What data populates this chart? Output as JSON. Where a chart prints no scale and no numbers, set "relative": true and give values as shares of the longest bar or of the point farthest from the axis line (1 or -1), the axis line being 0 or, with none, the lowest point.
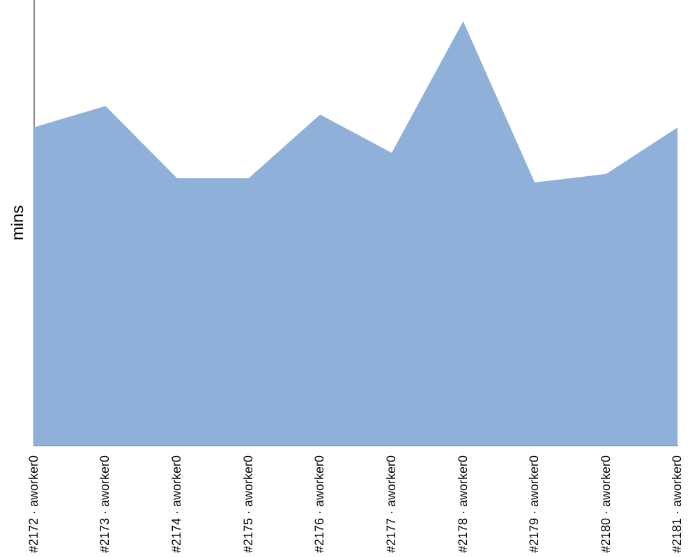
{
  "chart_data": {
    "type": "area",
    "ylabel": "mins",
    "relative": true,
    "categories": [
      "#2172 · aworker0",
      "#2173 · aworker0",
      "#2174 · aworker0",
      "#2175 · aworker0",
      "#2176 · aworker0",
      "#2177 · aworker0",
      "#2178 · aworker0",
      "#2179 · aworker0",
      "#2180 · aworker0",
      "#2181 · aworker0"
    ],
    "series": [
      {
        "color": "#8fb1d9",
        "values": [
          0.75,
          0.8,
          0.63,
          0.63,
          0.78,
          0.69,
          1,
          0.62,
          0.64,
          0.75
        ]
      }
    ]
  }
}
